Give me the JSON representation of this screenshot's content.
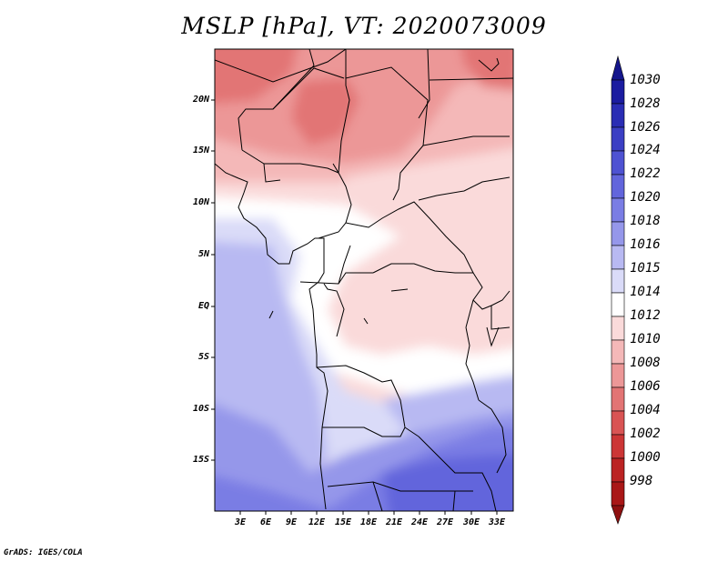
{
  "title": "MSLP [hPa], VT: 2020073009",
  "credit": "GrADS: IGES/COLA",
  "map": {
    "variable": "MSLP",
    "units": "hPa",
    "valid_time": "2020073009",
    "lat_labels": [
      "20N",
      "15N",
      "10N",
      "5N",
      "EQ",
      "5S",
      "10S",
      "15S"
    ],
    "lon_labels": [
      "3E",
      "6E",
      "9E",
      "12E",
      "15E",
      "18E",
      "21E",
      "24E",
      "27E",
      "30E",
      "33E"
    ]
  },
  "colorbar": {
    "labels": [
      "1030",
      "1028",
      "1026",
      "1024",
      "1022",
      "1020",
      "1018",
      "1016",
      "1015",
      "1014",
      "1012",
      "1010",
      "1008",
      "1006",
      "1004",
      "1002",
      "1000",
      "998"
    ],
    "colors": [
      "#1b1ca0",
      "#2a2db4",
      "#3b3fc4",
      "#4e52d2",
      "#6265dc",
      "#7a7de4",
      "#9597ea",
      "#b8b9f2",
      "#dadbf8",
      "#ffffff",
      "#fadada",
      "#f4b8b8",
      "#ec9797",
      "#e27474",
      "#d95454",
      "#cc3636",
      "#bb2323",
      "#a91717"
    ],
    "top_arrow_color": "#15168c",
    "bottom_arrow_color": "#8e1010"
  }
}
